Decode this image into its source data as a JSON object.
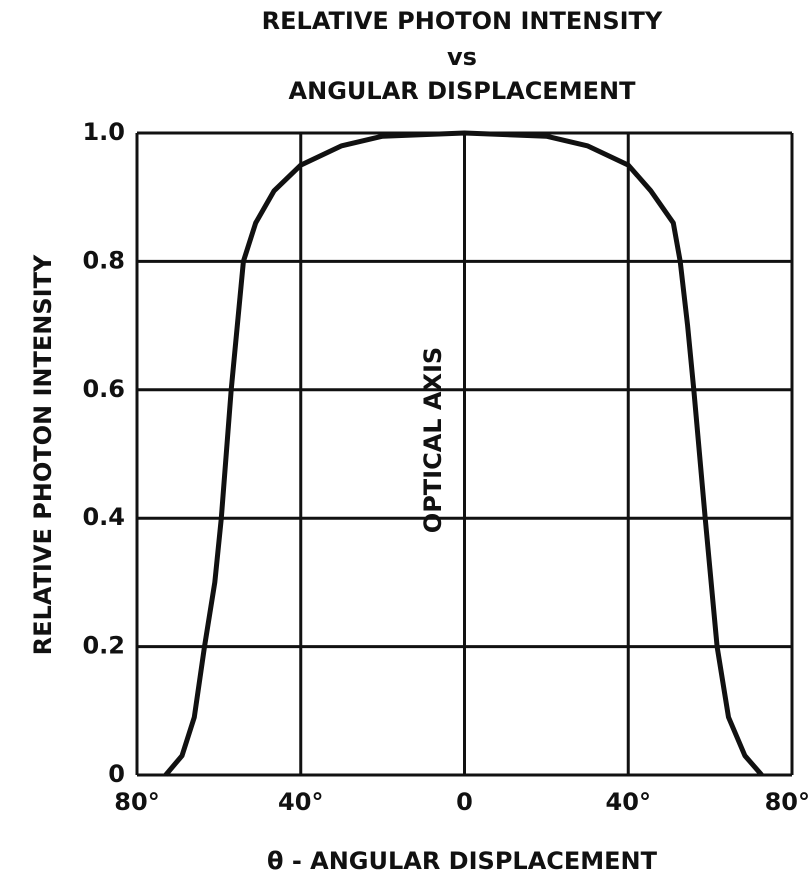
{
  "chart_data": {
    "type": "line",
    "title_lines": [
      "RELATIVE PHOTON INTENSITY",
      "vs",
      "ANGULAR DISPLACEMENT"
    ],
    "x_label": "θ - ANGULAR DISPLACEMENT",
    "y_label": "RELATIVE PHOTON INTENSITY",
    "annotation": "OPTICAL AXIS",
    "x": [
      -73,
      -69,
      -66,
      -63.5,
      -61,
      -59.4,
      -57,
      -55.5,
      -54,
      -51,
      -46.5,
      -40,
      -30,
      -20,
      0,
      20,
      30,
      40,
      45.5,
      51,
      52.7,
      54.5,
      56,
      58.8,
      61.7,
      64.5,
      68.5,
      72.6
    ],
    "series": [
      {
        "name": "Relative photon intensity",
        "color": "#111111",
        "values": [
          0,
          0.03,
          0.09,
          0.2,
          0.3,
          0.4,
          0.6,
          0.7,
          0.8,
          0.86,
          0.91,
          0.95,
          0.98,
          0.995,
          1,
          0.995,
          0.98,
          0.95,
          0.91,
          0.86,
          0.8,
          0.7,
          0.6,
          0.4,
          0.2,
          0.09,
          0.03,
          0
        ]
      }
    ],
    "xlim": [
      -80,
      80
    ],
    "xticks": [
      {
        "value": -80,
        "label": "80°"
      },
      {
        "value": -40,
        "label": "40°"
      },
      0,
      {
        "value": 40,
        "label": "40°"
      },
      {
        "value": 80,
        "label": "80°"
      }
    ],
    "ylim": [
      0,
      1
    ],
    "yticks": [
      0,
      0.2,
      0.4,
      0.6,
      0.8,
      {
        "value": 1,
        "label": "1.0"
      }
    ],
    "grid": true
  }
}
